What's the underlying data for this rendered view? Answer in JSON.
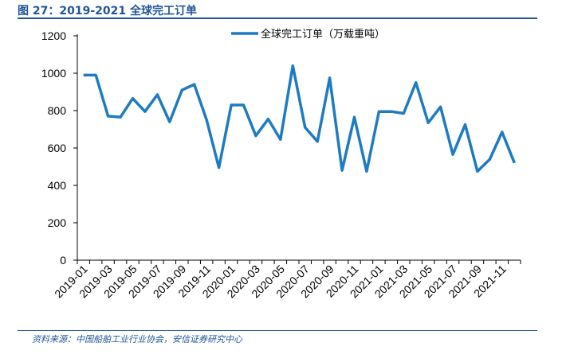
{
  "figure_title": "图 27：2019-2021 全球完工订单",
  "source": "资料来源：中国船舶工业行业协会，安信证券研究中心",
  "chart_data": {
    "type": "line",
    "title": "",
    "xlabel": "",
    "ylabel": "",
    "ylim": [
      0,
      1200
    ],
    "yticks": [
      0,
      200,
      400,
      600,
      800,
      1000,
      1200
    ],
    "grid": false,
    "legend_position": "top",
    "x": [
      "2019-01",
      "2019-02",
      "2019-03",
      "2019-04",
      "2019-05",
      "2019-06",
      "2019-07",
      "2019-08",
      "2019-09",
      "2019-10",
      "2019-11",
      "2019-12",
      "2020-01",
      "2020-02",
      "2020-03",
      "2020-04",
      "2020-05",
      "2020-06",
      "2020-07",
      "2020-08",
      "2020-09",
      "2020-10",
      "2020-11",
      "2020-12",
      "2021-01",
      "2021-02",
      "2021-03",
      "2021-04",
      "2021-05",
      "2021-06",
      "2021-07",
      "2021-08",
      "2021-09",
      "2021-10",
      "2021-11",
      "2021-12"
    ],
    "x_tick_labels": [
      "2019-01",
      "2019-03",
      "2019-05",
      "2019-07",
      "2019-09",
      "2019-11",
      "2020-01",
      "2020-03",
      "2020-05",
      "2020-07",
      "2020-09",
      "2020-11",
      "2021-01",
      "2021-03",
      "2021-05",
      "2021-07",
      "2021-09",
      "2021-11"
    ],
    "series": [
      {
        "name": "全球完工订单（万载重吨）",
        "color": "#1f7bc1",
        "values": [
          990,
          990,
          770,
          765,
          865,
          795,
          885,
          740,
          910,
          940,
          750,
          495,
          830,
          830,
          665,
          755,
          645,
          1040,
          710,
          635,
          975,
          480,
          765,
          475,
          795,
          795,
          785,
          950,
          735,
          820,
          565,
          725,
          475,
          540,
          685,
          520
        ]
      }
    ]
  }
}
